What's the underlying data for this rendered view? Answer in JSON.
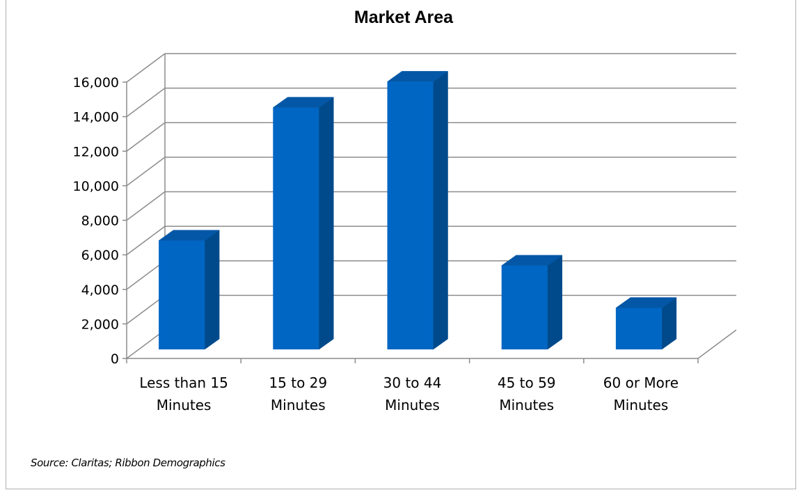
{
  "chart_data": {
    "type": "bar",
    "title": "Market Area",
    "categories": [
      [
        "Less than 15",
        "Minutes"
      ],
      [
        "15 to 29",
        "Minutes"
      ],
      [
        "30 to 44",
        "Minutes"
      ],
      [
        "45 to 59",
        "Minutes"
      ],
      [
        "60 or More",
        "Minutes"
      ]
    ],
    "values": [
      6300,
      14000,
      15500,
      4850,
      2400
    ],
    "ylim": [
      0,
      16000
    ],
    "yticks": [
      "0",
      "2,000",
      "4,000",
      "6,000",
      "8,000",
      "10,000",
      "12,000",
      "14,000",
      "16,000"
    ],
    "xlabel": "",
    "ylabel": "",
    "grid": true,
    "legend": "none",
    "style": "3d-column"
  },
  "colors": {
    "bar_front": "#0066c4",
    "bar_side": "#004a8c",
    "bar_top": "#0357a6",
    "gridline": "#8c8c8c"
  },
  "source": "Source: Claritas; Ribbon Demographics"
}
